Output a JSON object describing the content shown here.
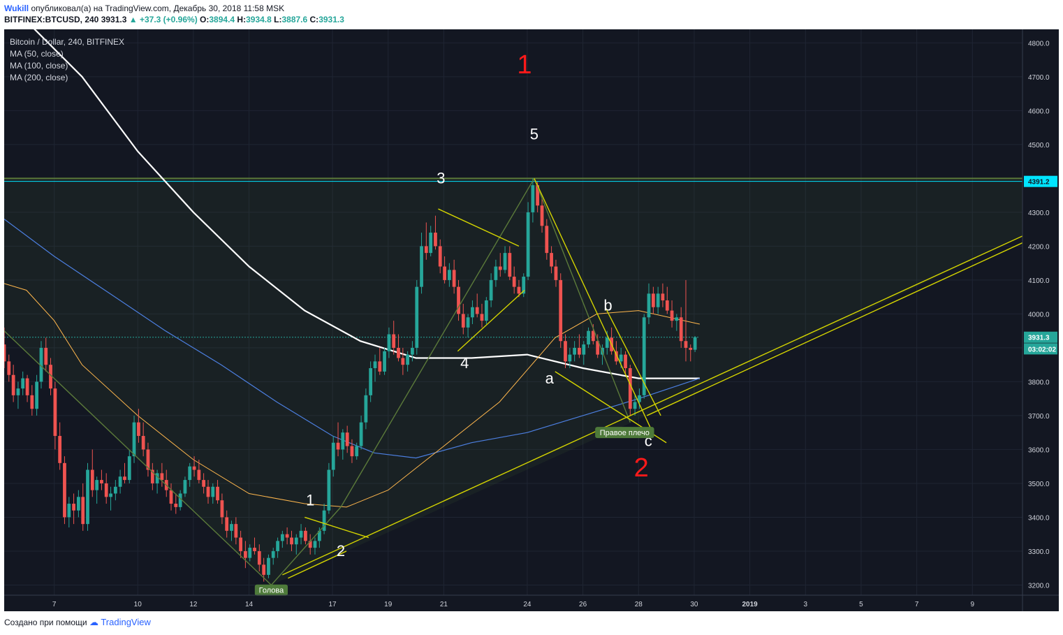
{
  "header": {
    "author": "Wukill",
    "published": "опубликовал(а) на TradingView.com, Декабрь 30, 2018 11:58 MSK",
    "symbol": "BITFINEX:BTCUSD, 240",
    "last": "3931.3",
    "change": "▲ +37.3 (+0.96%)",
    "o_label": "O:",
    "o": "3894.4",
    "h_label": "H:",
    "h": "3934.8",
    "l_label": "L:",
    "l": "3887.6",
    "c_label": "C:",
    "c": "3931.3"
  },
  "legend": {
    "title": "Bitcoin / Dollar, 240, BITFINEX",
    "ma50": "MA (50, close)",
    "ma100": "MA (100, close)",
    "ma200": "MA (200, close)"
  },
  "footer": {
    "created": "Создано при помощи",
    "brand": "TradingView"
  },
  "colors": {
    "background": "#131722",
    "up": "#26a69a",
    "down": "#ef5350",
    "ma50": "#ffb74d",
    "ma100": "#4c7fe0",
    "ma200": "#ffffff",
    "trendline": "#d4d400",
    "pattern": "#5b7a3a",
    "horizontal": "#00e5ff",
    "wave_red": "#ff1a1a"
  },
  "chart_data": {
    "type": "candlestick",
    "symbol": "BTCUSD",
    "y_ticks": [
      3200,
      3300,
      3400,
      3500,
      3600,
      3700,
      3800,
      3900,
      4000,
      4100,
      4200,
      4300,
      4400,
      4500,
      4600,
      4700,
      4800
    ],
    "y_tick_labels": [
      "3200.0",
      "3300.0",
      "3400.0",
      "3500.0",
      "3600.0",
      "3700.0",
      "3800.0",
      "3900.0",
      "4000.0",
      "4100.0",
      "4200.0",
      "4300.0",
      "4400.0",
      "4500.0",
      "4600.0",
      "4700.0",
      "4800.0"
    ],
    "ylim": [
      3170,
      4840
    ],
    "x_tick_labels": [
      "7",
      "10",
      "12",
      "14",
      "17",
      "19",
      "21",
      "24",
      "26",
      "28",
      "30",
      "2019",
      "3",
      "5",
      "7",
      "9"
    ],
    "x_ticks_day": [
      7,
      10,
      12,
      14,
      17,
      19,
      21,
      24,
      26,
      28,
      30,
      32,
      34,
      36,
      38,
      40
    ],
    "xlim_day": [
      5.2,
      41.8
    ],
    "price_labels": [
      {
        "value": 4391.2,
        "text": "4391.2",
        "color": "#00e5ff"
      },
      {
        "value": 3931.3,
        "text": "3931.3",
        "color": "#26a69a"
      },
      {
        "value": 3897.0,
        "text": "03:02:02",
        "color": "#26a69a"
      }
    ],
    "horizontal_lines": [
      {
        "value": 4391.2,
        "color": "#00e5ff"
      },
      {
        "value": 4400,
        "color": "#5b7a3a"
      }
    ],
    "candles": [
      [
        5.2,
        3910,
        3960,
        3840,
        3860
      ],
      [
        5.37,
        3860,
        3880,
        3800,
        3820
      ],
      [
        5.53,
        3820,
        3850,
        3740,
        3760
      ],
      [
        5.7,
        3760,
        3800,
        3720,
        3780
      ],
      [
        5.87,
        3780,
        3830,
        3760,
        3810
      ],
      [
        6.03,
        3810,
        3820,
        3740,
        3760
      ],
      [
        6.2,
        3760,
        3790,
        3700,
        3720
      ],
      [
        6.37,
        3720,
        3820,
        3700,
        3800
      ],
      [
        6.53,
        3800,
        3920,
        3780,
        3900
      ],
      [
        6.7,
        3900,
        3930,
        3830,
        3850
      ],
      [
        6.87,
        3850,
        3870,
        3760,
        3780
      ],
      [
        7.03,
        3780,
        3800,
        3600,
        3640
      ],
      [
        7.2,
        3640,
        3680,
        3540,
        3560
      ],
      [
        7.37,
        3560,
        3580,
        3380,
        3400
      ],
      [
        7.53,
        3400,
        3460,
        3370,
        3440
      ],
      [
        7.7,
        3440,
        3470,
        3380,
        3420
      ],
      [
        7.87,
        3420,
        3480,
        3400,
        3460
      ],
      [
        8.03,
        3460,
        3500,
        3360,
        3380
      ],
      [
        8.2,
        3380,
        3560,
        3360,
        3540
      ],
      [
        8.37,
        3540,
        3600,
        3460,
        3480
      ],
      [
        8.53,
        3480,
        3520,
        3440,
        3510
      ],
      [
        8.7,
        3510,
        3540,
        3480,
        3500
      ],
      [
        8.87,
        3500,
        3530,
        3440,
        3460
      ],
      [
        9.03,
        3460,
        3490,
        3420,
        3470
      ],
      [
        9.2,
        3470,
        3510,
        3450,
        3490
      ],
      [
        9.37,
        3490,
        3540,
        3470,
        3520
      ],
      [
        9.53,
        3520,
        3560,
        3500,
        3510
      ],
      [
        9.7,
        3510,
        3600,
        3500,
        3580
      ],
      [
        9.87,
        3580,
        3700,
        3560,
        3680
      ],
      [
        10.03,
        3680,
        3720,
        3620,
        3640
      ],
      [
        10.2,
        3640,
        3680,
        3580,
        3600
      ],
      [
        10.37,
        3600,
        3620,
        3520,
        3540
      ],
      [
        10.53,
        3540,
        3560,
        3480,
        3500
      ],
      [
        10.7,
        3500,
        3540,
        3470,
        3530
      ],
      [
        10.87,
        3530,
        3560,
        3490,
        3510
      ],
      [
        11.03,
        3510,
        3540,
        3460,
        3480
      ],
      [
        11.2,
        3480,
        3500,
        3420,
        3440
      ],
      [
        11.37,
        3440,
        3470,
        3410,
        3430
      ],
      [
        11.53,
        3430,
        3480,
        3420,
        3470
      ],
      [
        11.7,
        3470,
        3520,
        3460,
        3510
      ],
      [
        11.87,
        3510,
        3560,
        3490,
        3550
      ],
      [
        12.03,
        3550,
        3580,
        3520,
        3540
      ],
      [
        12.2,
        3540,
        3570,
        3500,
        3510
      ],
      [
        12.37,
        3510,
        3530,
        3470,
        3490
      ],
      [
        12.53,
        3490,
        3510,
        3440,
        3460
      ],
      [
        12.7,
        3460,
        3500,
        3440,
        3490
      ],
      [
        12.87,
        3490,
        3510,
        3440,
        3450
      ],
      [
        13.03,
        3450,
        3470,
        3380,
        3400
      ],
      [
        13.2,
        3400,
        3420,
        3340,
        3360
      ],
      [
        13.37,
        3360,
        3390,
        3330,
        3380
      ],
      [
        13.53,
        3380,
        3400,
        3320,
        3340
      ],
      [
        13.7,
        3340,
        3360,
        3280,
        3300
      ],
      [
        13.87,
        3300,
        3330,
        3250,
        3280
      ],
      [
        14.03,
        3280,
        3320,
        3270,
        3310
      ],
      [
        14.2,
        3310,
        3340,
        3290,
        3300
      ],
      [
        14.37,
        3300,
        3320,
        3240,
        3260
      ],
      [
        14.53,
        3260,
        3280,
        3210,
        3230
      ],
      [
        14.7,
        3230,
        3290,
        3220,
        3280
      ],
      [
        14.87,
        3280,
        3310,
        3260,
        3300
      ],
      [
        15.03,
        3300,
        3340,
        3280,
        3330
      ],
      [
        15.2,
        3330,
        3360,
        3310,
        3350
      ],
      [
        15.37,
        3350,
        3370,
        3320,
        3340
      ],
      [
        15.53,
        3340,
        3360,
        3300,
        3320
      ],
      [
        15.7,
        3320,
        3350,
        3290,
        3340
      ],
      [
        15.87,
        3340,
        3380,
        3320,
        3360
      ],
      [
        16.03,
        3360,
        3370,
        3320,
        3330
      ],
      [
        16.2,
        3330,
        3350,
        3290,
        3310
      ],
      [
        16.37,
        3310,
        3340,
        3290,
        3330
      ],
      [
        16.53,
        3330,
        3370,
        3310,
        3360
      ],
      [
        16.7,
        3360,
        3440,
        3350,
        3420
      ],
      [
        16.87,
        3420,
        3560,
        3410,
        3540
      ],
      [
        17.03,
        3540,
        3640,
        3520,
        3620
      ],
      [
        17.2,
        3620,
        3680,
        3580,
        3600
      ],
      [
        17.37,
        3600,
        3660,
        3570,
        3650
      ],
      [
        17.53,
        3650,
        3670,
        3590,
        3610
      ],
      [
        17.7,
        3610,
        3630,
        3560,
        3580
      ],
      [
        17.87,
        3580,
        3620,
        3570,
        3610
      ],
      [
        18.03,
        3610,
        3700,
        3600,
        3680
      ],
      [
        18.2,
        3680,
        3780,
        3660,
        3760
      ],
      [
        18.37,
        3760,
        3860,
        3740,
        3840
      ],
      [
        18.53,
        3840,
        3880,
        3800,
        3860
      ],
      [
        18.7,
        3860,
        3900,
        3820,
        3830
      ],
      [
        18.87,
        3830,
        3900,
        3820,
        3890
      ],
      [
        19.03,
        3890,
        3960,
        3870,
        3940
      ],
      [
        19.2,
        3940,
        3980,
        3880,
        3900
      ],
      [
        19.37,
        3900,
        3940,
        3860,
        3870
      ],
      [
        19.53,
        3870,
        3900,
        3820,
        3850
      ],
      [
        19.7,
        3850,
        3890,
        3830,
        3880
      ],
      [
        19.87,
        3880,
        3920,
        3860,
        3900
      ],
      [
        20.03,
        3900,
        4100,
        3880,
        4080
      ],
      [
        20.2,
        4080,
        4240,
        4060,
        4200
      ],
      [
        20.37,
        4200,
        4270,
        4160,
        4180
      ],
      [
        20.53,
        4180,
        4260,
        4170,
        4240
      ],
      [
        20.7,
        4240,
        4290,
        4190,
        4200
      ],
      [
        20.87,
        4200,
        4220,
        4120,
        4140
      ],
      [
        21.03,
        4140,
        4170,
        4090,
        4100
      ],
      [
        21.2,
        4100,
        4150,
        4080,
        4130
      ],
      [
        21.37,
        4130,
        4160,
        4060,
        4080
      ],
      [
        21.53,
        4080,
        4100,
        3980,
        4000
      ],
      [
        21.7,
        4000,
        4030,
        3940,
        3960
      ],
      [
        21.87,
        3960,
        4000,
        3930,
        3990
      ],
      [
        22.03,
        3990,
        4040,
        3970,
        4020
      ],
      [
        22.2,
        4020,
        4060,
        3990,
        4000
      ],
      [
        22.37,
        4000,
        4030,
        3960,
        3980
      ],
      [
        22.53,
        3980,
        4050,
        3970,
        4040
      ],
      [
        22.7,
        4040,
        4120,
        4020,
        4100
      ],
      [
        22.87,
        4100,
        4160,
        4080,
        4140
      ],
      [
        23.03,
        4140,
        4180,
        4110,
        4130
      ],
      [
        23.2,
        4130,
        4200,
        4120,
        4180
      ],
      [
        23.37,
        4180,
        4200,
        4100,
        4110
      ],
      [
        23.53,
        4110,
        4140,
        4060,
        4080
      ],
      [
        23.7,
        4080,
        4100,
        4050,
        4060
      ],
      [
        23.87,
        4060,
        4120,
        4050,
        4110
      ],
      [
        24.03,
        4110,
        4330,
        4100,
        4300
      ],
      [
        24.2,
        4300,
        4400,
        4270,
        4380
      ],
      [
        24.37,
        4380,
        4390,
        4300,
        4320
      ],
      [
        24.53,
        4320,
        4340,
        4240,
        4260
      ],
      [
        24.7,
        4260,
        4280,
        4160,
        4180
      ],
      [
        24.87,
        4180,
        4200,
        4120,
        4140
      ],
      [
        25.03,
        4140,
        4160,
        4080,
        4100
      ],
      [
        25.2,
        4100,
        4120,
        3900,
        3920
      ],
      [
        25.37,
        3920,
        3940,
        3840,
        3860
      ],
      [
        25.53,
        3860,
        3900,
        3840,
        3880
      ],
      [
        25.7,
        3880,
        3920,
        3860,
        3900
      ],
      [
        25.87,
        3900,
        3940,
        3870,
        3880
      ],
      [
        26.03,
        3880,
        3920,
        3850,
        3910
      ],
      [
        26.2,
        3910,
        3960,
        3900,
        3950
      ],
      [
        26.37,
        3950,
        3970,
        3910,
        3920
      ],
      [
        26.53,
        3920,
        3940,
        3870,
        3880
      ],
      [
        26.7,
        3880,
        3910,
        3850,
        3900
      ],
      [
        26.87,
        3900,
        3950,
        3880,
        3930
      ],
      [
        27.03,
        3930,
        3960,
        3880,
        3890
      ],
      [
        27.2,
        3890,
        3920,
        3850,
        3860
      ],
      [
        27.37,
        3860,
        3900,
        3840,
        3880
      ],
      [
        27.53,
        3880,
        3890,
        3820,
        3840
      ],
      [
        27.7,
        3840,
        3850,
        3700,
        3720
      ],
      [
        27.87,
        3720,
        3760,
        3700,
        3740
      ],
      [
        28.03,
        3740,
        3780,
        3720,
        3760
      ],
      [
        28.2,
        3760,
        4000,
        3750,
        3990
      ],
      [
        28.37,
        3990,
        4090,
        3970,
        4060
      ],
      [
        28.53,
        4060,
        4080,
        4000,
        4020
      ],
      [
        28.7,
        4020,
        4080,
        4000,
        4060
      ],
      [
        28.87,
        4060,
        4090,
        4020,
        4040
      ],
      [
        29.03,
        4040,
        4080,
        4000,
        4010
      ],
      [
        29.2,
        4010,
        4040,
        3960,
        3980
      ],
      [
        29.37,
        3980,
        4000,
        3950,
        3990
      ],
      [
        29.53,
        3990,
        4020,
        3900,
        3920
      ],
      [
        29.7,
        3920,
        4100,
        3860,
        3900
      ],
      [
        29.87,
        3900,
        3910,
        3860,
        3894
      ],
      [
        30.03,
        3894.4,
        3934.8,
        3887.6,
        3931.3
      ]
    ],
    "annotations": [
      {
        "text": "1",
        "day": 23.9,
        "price": 4710,
        "color": "#ff1a1a",
        "size": 38
      },
      {
        "text": "2",
        "day": 28.1,
        "price": 3520,
        "color": "#ff1a1a",
        "size": 38
      },
      {
        "text": "5",
        "day": 24.25,
        "price": 4515,
        "color": "#ffffff",
        "size": 22
      },
      {
        "text": "3",
        "day": 20.9,
        "price": 4385,
        "color": "#ffffff",
        "size": 22
      },
      {
        "text": "4",
        "day": 21.75,
        "price": 3840,
        "color": "#ffffff",
        "size": 22
      },
      {
        "text": "1",
        "day": 16.2,
        "price": 3435,
        "color": "#ffffff",
        "size": 22
      },
      {
        "text": "2",
        "day": 17.3,
        "price": 3285,
        "color": "#ffffff",
        "size": 22
      },
      {
        "text": "a",
        "day": 24.8,
        "price": 3795,
        "color": "#ffffff",
        "size": 22
      },
      {
        "text": "b",
        "day": 26.9,
        "price": 4010,
        "color": "#ffffff",
        "size": 22
      },
      {
        "text": "c",
        "day": 28.35,
        "price": 3610,
        "color": "#ffffff",
        "size": 22
      }
    ],
    "labels": [
      {
        "text": "Голова",
        "day": 14.8,
        "price": 3185
      },
      {
        "text": "Правое плечо",
        "day": 27.5,
        "price": 3650
      }
    ]
  }
}
